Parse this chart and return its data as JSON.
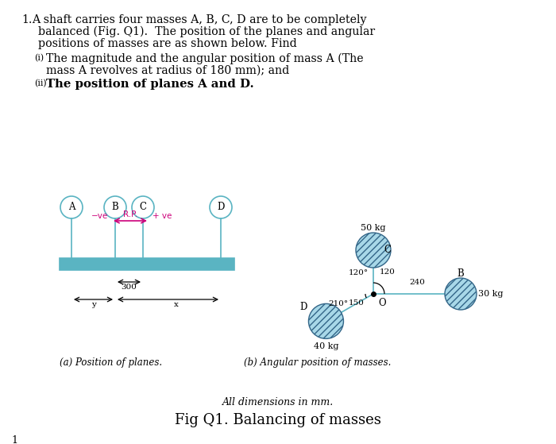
{
  "bg_color": "#ffffff",
  "text_color": "#000000",
  "cyan_color": "#5ab4c2",
  "pink_color": "#cc007a",
  "hatch_fill_color": "#a8d8e8",
  "line1": "1. A shaft carries four masses A, B, C, D are to be completely",
  "line2": "   balanced (Fig. Q1).  The position of the planes and angular",
  "line3": "   positions of masses are as shown below. Find",
  "line_i_label": "(i)",
  "line_i_text": " The magnitude and the angular position of mass A (The",
  "line_i2_text": "    mass A revolves at radius of 180 mm); and",
  "line_ii_label": "(ii)",
  "line_ii_text": "The position of planes A and D.",
  "cap_a": "(a) Position of planes.",
  "cap_b": "(b) Angular position of masses.",
  "dim_note": "All dimensions in mm.",
  "fig_title": "Fig Q1. Balancing of masses",
  "page_num": "1"
}
